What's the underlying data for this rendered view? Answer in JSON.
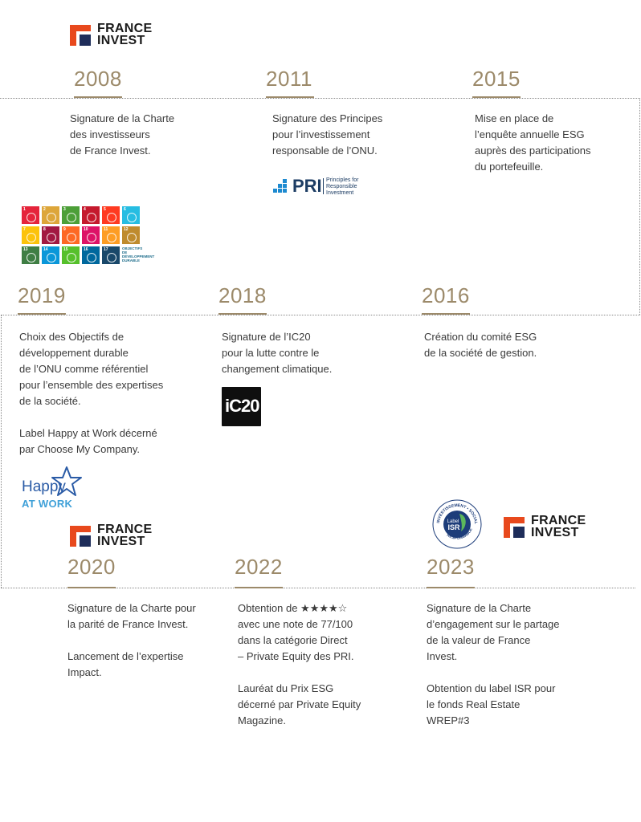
{
  "logos": {
    "france_invest": "FRANCE\nINVEST",
    "pri_main": "PRI",
    "pri_sub": "Principles for\nResponsible\nInvestment",
    "ic20": "iC20",
    "happy": "Happy",
    "happy_sub": "AT WORK",
    "isr_center": "Label\nISR",
    "isr_ring_top": "INVESTISSEMENT • SOCIALEMENT",
    "isr_ring_bottom": "RESPONSABLE",
    "sdg_label": "OBJECTIFS\nDE DÉVELOPPEMENT\nDURABLE",
    "brand_colors": {
      "orange": "#e8491d",
      "navy": "#1e2d5a",
      "pri_blue": "#1d8ad0"
    }
  },
  "timeline": {
    "y2008": {
      "year": "2008",
      "text": "Signature de la Charte\ndes investisseurs\nde France Invest."
    },
    "y2011": {
      "year": "2011",
      "text": "Signature des Principes\npour l’investissement\nresponsable de l’ONU."
    },
    "y2015": {
      "year": "2015",
      "text": "Mise en place de\nl’enquête annuelle ESG\nauprès des participations\ndu portefeuille."
    },
    "y2019": {
      "year": "2019",
      "text": "Choix des Objectifs de\ndéveloppement durable\nde l’ONU comme référentiel\npour l’ensemble des expertises\nde la société.\n\nLabel Happy at Work décerné\npar Choose My Company."
    },
    "y2018": {
      "year": "2018",
      "text": "Signature de l’IC20\npour la lutte contre le\nchangement climatique."
    },
    "y2016": {
      "year": "2016",
      "text": "Création du comité ESG\nde la société de gestion."
    },
    "y2020": {
      "year": "2020",
      "text": "Signature de la Charte pour\nla parité de France Invest.\n\nLancement de l’expertise\nImpact."
    },
    "y2022": {
      "year": "2022",
      "text": "Obtention de ★★★★☆\navec une note de 77/100\ndans la catégorie Direct\n– Private Equity des PRI.\n\nLauréat du Prix ESG\ndécerné par Private Equity\nMagazine."
    },
    "y2023": {
      "year": "2023",
      "text": "Signature de la Charte\nd’engagement sur le partage\nde la valeur de France\nInvest.\n\nObtention du label ISR pour\nle fonds Real Estate\nWREP#3"
    }
  }
}
